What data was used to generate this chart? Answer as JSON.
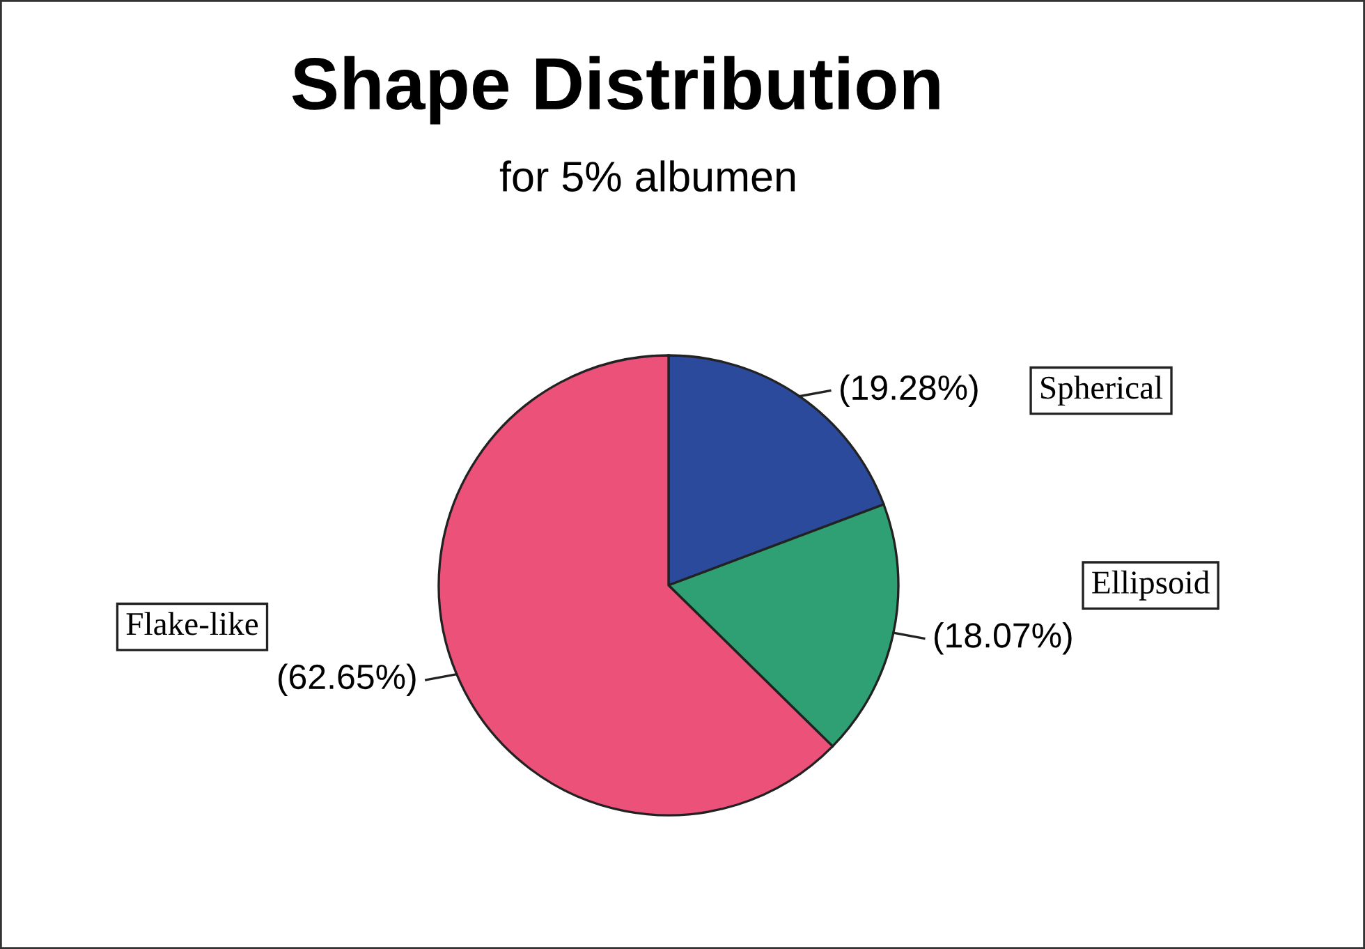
{
  "chart_data": {
    "type": "pie",
    "title": "Shape Distribution",
    "subtitle": "for 5% albumen",
    "categories": [
      "Spherical",
      "Ellipsoid",
      "Flake-like"
    ],
    "values": [
      19.28,
      18.07,
      62.65
    ],
    "value_labels": [
      "(19.28%)",
      "(18.07%)",
      "(62.65%)"
    ],
    "colors": [
      "#2b4a9c",
      "#2f9f74",
      "#ec5179"
    ]
  }
}
